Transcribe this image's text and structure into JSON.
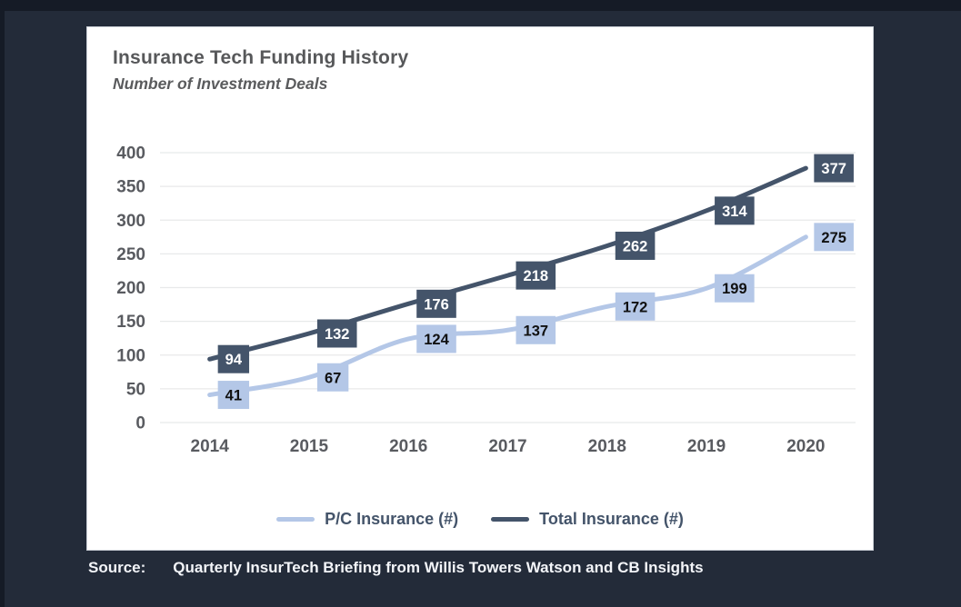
{
  "window": {
    "background_color": "#232b39",
    "frame_color": "#151b26",
    "card_color": "#ffffff"
  },
  "chart_data": {
    "type": "line",
    "title": "Insurance Tech Funding History",
    "subtitle": "Number of Investment Deals",
    "categories": [
      "2014",
      "2015",
      "2016",
      "2017",
      "2018",
      "2019",
      "2020"
    ],
    "series": [
      {
        "name": "P/C Insurance (#)",
        "values": [
          41,
          67,
          124,
          137,
          172,
          199,
          275
        ],
        "color": "#b4c7e7",
        "label_bg": "#b4c7e7",
        "label_text_color": "#111111"
      },
      {
        "name": "Total Insurance (#)",
        "values": [
          94,
          132,
          176,
          218,
          262,
          314,
          377
        ],
        "color": "#44546a",
        "label_bg": "#44546a",
        "label_text_color": "#ffffff"
      }
    ],
    "ylim": [
      0,
      400
    ],
    "ytick_step": 50,
    "yticks": [
      0,
      50,
      100,
      150,
      200,
      250,
      300,
      350,
      400
    ],
    "grid": true,
    "gridline_color": "#e8e9ea",
    "axis_label_color": "#595b60",
    "smoothed": true,
    "data_labels": true,
    "legend_position": "bottom"
  },
  "source": {
    "label": "Source:",
    "text": "Quarterly InsurTech Briefing from Willis Towers Watson and CB Insights"
  }
}
